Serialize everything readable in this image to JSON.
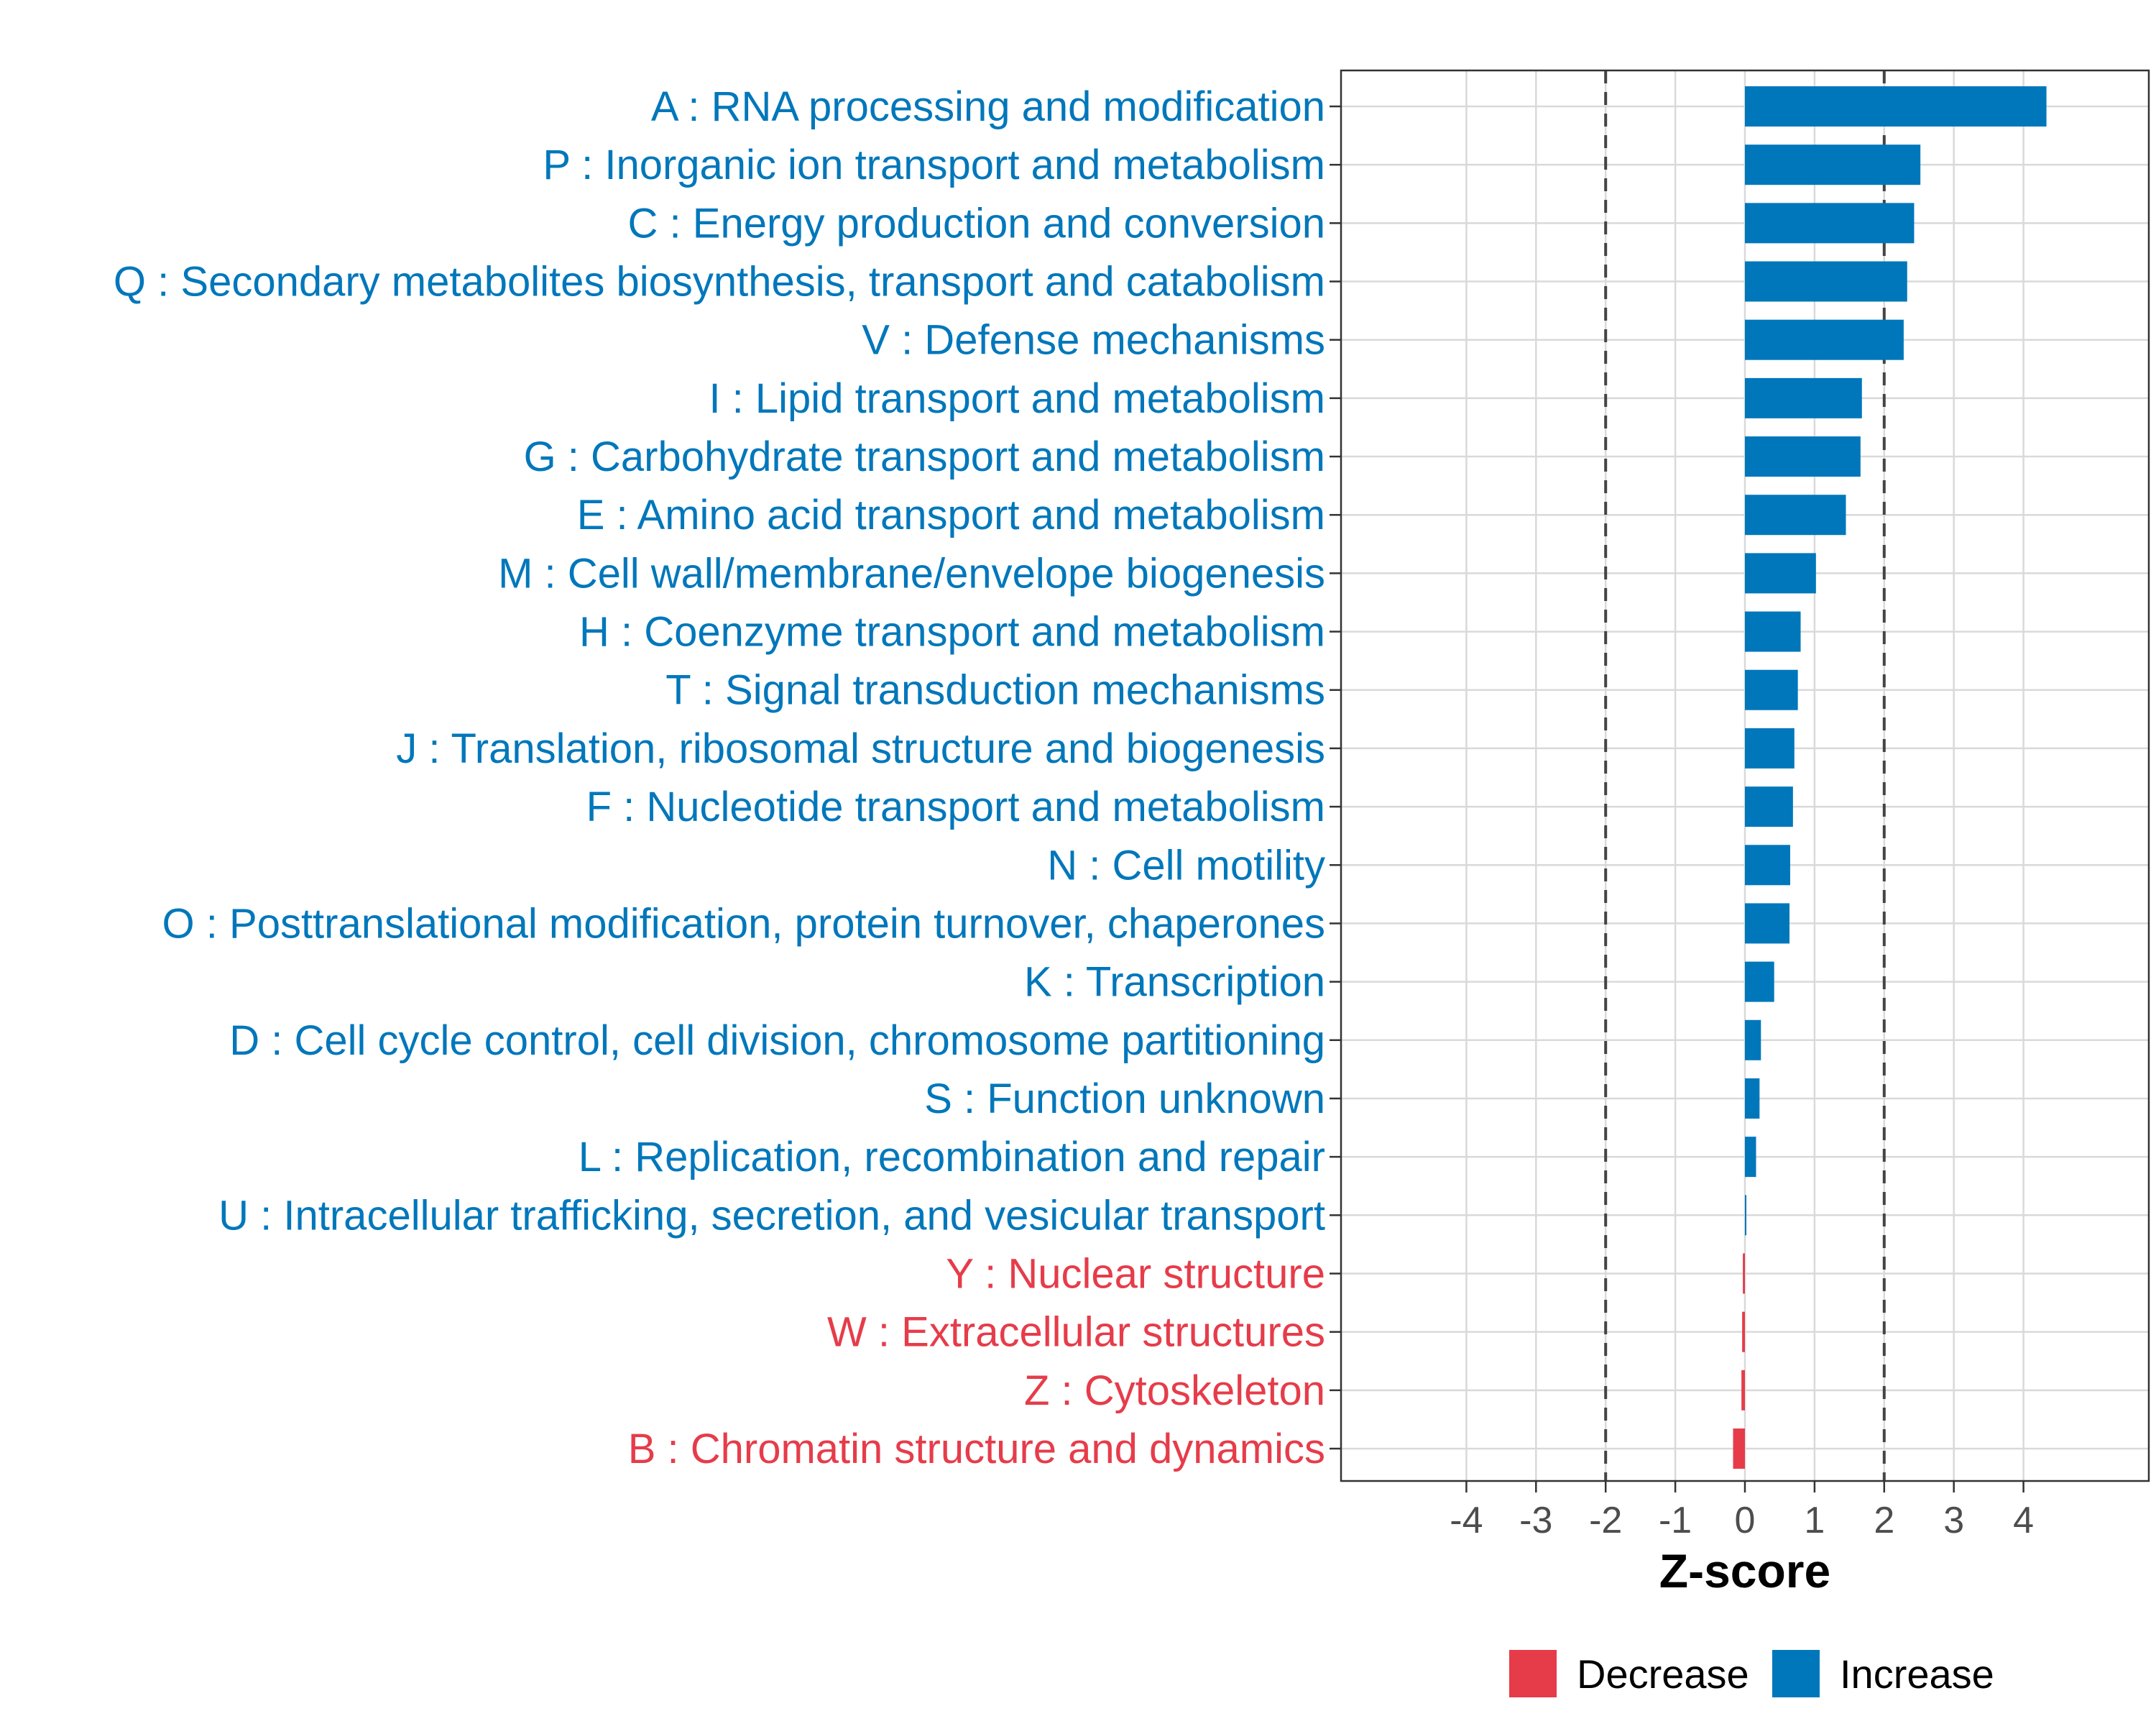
{
  "chart_data": {
    "type": "bar",
    "orientation": "horizontal",
    "xlabel": "Z-score",
    "xlim": [
      -5.8,
      5.8
    ],
    "x_ticks": [
      -4,
      -3,
      -2,
      -1,
      0,
      1,
      2,
      3,
      4
    ],
    "threshold_lines": [
      -2,
      2
    ],
    "grid": true,
    "legend_position": "bottom",
    "legend": [
      {
        "key": "decrease",
        "label": "Decrease"
      },
      {
        "key": "increase",
        "label": "Increase"
      }
    ],
    "colors": {
      "increase": "#0077bb",
      "decrease": "#e63c4a"
    },
    "categories": [
      {
        "label": "A : RNA processing and modification",
        "value": 4.33,
        "direction": "increase"
      },
      {
        "label": "P : Inorganic ion transport and metabolism",
        "value": 2.52,
        "direction": "increase"
      },
      {
        "label": "C : Energy production and conversion",
        "value": 2.43,
        "direction": "increase"
      },
      {
        "label": "Q : Secondary metabolites biosynthesis, transport and catabolism",
        "value": 2.33,
        "direction": "increase"
      },
      {
        "label": "V : Defense mechanisms",
        "value": 2.28,
        "direction": "increase"
      },
      {
        "label": "I : Lipid transport and metabolism",
        "value": 1.68,
        "direction": "increase"
      },
      {
        "label": "G : Carbohydrate transport and metabolism",
        "value": 1.66,
        "direction": "increase"
      },
      {
        "label": "E : Amino acid transport and metabolism",
        "value": 1.45,
        "direction": "increase"
      },
      {
        "label": "M : Cell wall/membrane/envelope biogenesis",
        "value": 1.02,
        "direction": "increase"
      },
      {
        "label": "H : Coenzyme transport and metabolism",
        "value": 0.8,
        "direction": "increase"
      },
      {
        "label": "T : Signal transduction mechanisms",
        "value": 0.76,
        "direction": "increase"
      },
      {
        "label": "J : Translation, ribosomal structure and biogenesis",
        "value": 0.71,
        "direction": "increase"
      },
      {
        "label": "F : Nucleotide transport and metabolism",
        "value": 0.69,
        "direction": "increase"
      },
      {
        "label": "N : Cell motility",
        "value": 0.65,
        "direction": "increase"
      },
      {
        "label": "O : Posttranslational modification, protein turnover, chaperones",
        "value": 0.64,
        "direction": "increase"
      },
      {
        "label": "K : Transcription",
        "value": 0.42,
        "direction": "increase"
      },
      {
        "label": "D : Cell cycle control, cell division, chromosome partitioning",
        "value": 0.23,
        "direction": "increase"
      },
      {
        "label": "S : Function unknown",
        "value": 0.21,
        "direction": "increase"
      },
      {
        "label": "L : Replication, recombination and repair",
        "value": 0.16,
        "direction": "increase"
      },
      {
        "label": "U : Intracellular trafficking, secretion, and vesicular transport",
        "value": 0.02,
        "direction": "increase"
      },
      {
        "label": "Y : Nuclear structure",
        "value": -0.03,
        "direction": "decrease"
      },
      {
        "label": "W : Extracellular structures",
        "value": -0.04,
        "direction": "decrease"
      },
      {
        "label": "Z : Cytoskeleton",
        "value": -0.05,
        "direction": "decrease"
      },
      {
        "label": "B : Chromatin structure and dynamics",
        "value": -0.17,
        "direction": "decrease"
      }
    ]
  }
}
